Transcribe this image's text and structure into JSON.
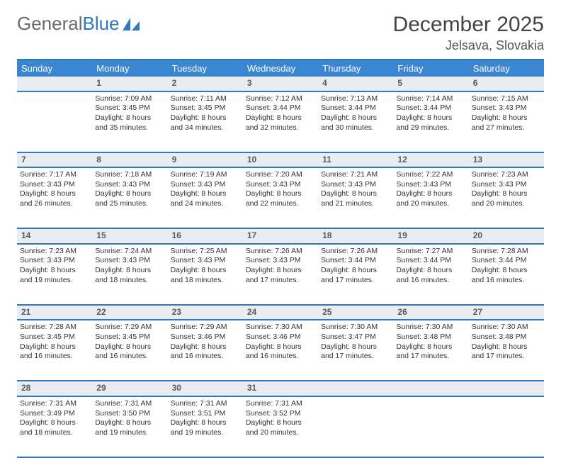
{
  "logo": {
    "text1": "General",
    "text2": "Blue"
  },
  "title": "December 2025",
  "location": "Jelsava, Slovakia",
  "colors": {
    "header_bg": "#3a86d0",
    "border": "#2f78c4",
    "daynum_bg": "#e9edf1",
    "text": "#333333"
  },
  "weekdays": [
    "Sunday",
    "Monday",
    "Tuesday",
    "Wednesday",
    "Thursday",
    "Friday",
    "Saturday"
  ],
  "weeks": [
    {
      "nums": [
        "",
        "1",
        "2",
        "3",
        "4",
        "5",
        "6"
      ],
      "cells": [
        "",
        "Sunrise: 7:09 AM\nSunset: 3:45 PM\nDaylight: 8 hours and 35 minutes.",
        "Sunrise: 7:11 AM\nSunset: 3:45 PM\nDaylight: 8 hours and 34 minutes.",
        "Sunrise: 7:12 AM\nSunset: 3:44 PM\nDaylight: 8 hours and 32 minutes.",
        "Sunrise: 7:13 AM\nSunset: 3:44 PM\nDaylight: 8 hours and 30 minutes.",
        "Sunrise: 7:14 AM\nSunset: 3:44 PM\nDaylight: 8 hours and 29 minutes.",
        "Sunrise: 7:15 AM\nSunset: 3:43 PM\nDaylight: 8 hours and 27 minutes."
      ]
    },
    {
      "nums": [
        "7",
        "8",
        "9",
        "10",
        "11",
        "12",
        "13"
      ],
      "cells": [
        "Sunrise: 7:17 AM\nSunset: 3:43 PM\nDaylight: 8 hours and 26 minutes.",
        "Sunrise: 7:18 AM\nSunset: 3:43 PM\nDaylight: 8 hours and 25 minutes.",
        "Sunrise: 7:19 AM\nSunset: 3:43 PM\nDaylight: 8 hours and 24 minutes.",
        "Sunrise: 7:20 AM\nSunset: 3:43 PM\nDaylight: 8 hours and 22 minutes.",
        "Sunrise: 7:21 AM\nSunset: 3:43 PM\nDaylight: 8 hours and 21 minutes.",
        "Sunrise: 7:22 AM\nSunset: 3:43 PM\nDaylight: 8 hours and 20 minutes.",
        "Sunrise: 7:23 AM\nSunset: 3:43 PM\nDaylight: 8 hours and 20 minutes."
      ]
    },
    {
      "nums": [
        "14",
        "15",
        "16",
        "17",
        "18",
        "19",
        "20"
      ],
      "cells": [
        "Sunrise: 7:23 AM\nSunset: 3:43 PM\nDaylight: 8 hours and 19 minutes.",
        "Sunrise: 7:24 AM\nSunset: 3:43 PM\nDaylight: 8 hours and 18 minutes.",
        "Sunrise: 7:25 AM\nSunset: 3:43 PM\nDaylight: 8 hours and 18 minutes.",
        "Sunrise: 7:26 AM\nSunset: 3:43 PM\nDaylight: 8 hours and 17 minutes.",
        "Sunrise: 7:26 AM\nSunset: 3:44 PM\nDaylight: 8 hours and 17 minutes.",
        "Sunrise: 7:27 AM\nSunset: 3:44 PM\nDaylight: 8 hours and 16 minutes.",
        "Sunrise: 7:28 AM\nSunset: 3:44 PM\nDaylight: 8 hours and 16 minutes."
      ]
    },
    {
      "nums": [
        "21",
        "22",
        "23",
        "24",
        "25",
        "26",
        "27"
      ],
      "cells": [
        "Sunrise: 7:28 AM\nSunset: 3:45 PM\nDaylight: 8 hours and 16 minutes.",
        "Sunrise: 7:29 AM\nSunset: 3:45 PM\nDaylight: 8 hours and 16 minutes.",
        "Sunrise: 7:29 AM\nSunset: 3:46 PM\nDaylight: 8 hours and 16 minutes.",
        "Sunrise: 7:30 AM\nSunset: 3:46 PM\nDaylight: 8 hours and 16 minutes.",
        "Sunrise: 7:30 AM\nSunset: 3:47 PM\nDaylight: 8 hours and 17 minutes.",
        "Sunrise: 7:30 AM\nSunset: 3:48 PM\nDaylight: 8 hours and 17 minutes.",
        "Sunrise: 7:30 AM\nSunset: 3:48 PM\nDaylight: 8 hours and 17 minutes."
      ]
    },
    {
      "nums": [
        "28",
        "29",
        "30",
        "31",
        "",
        "",
        ""
      ],
      "cells": [
        "Sunrise: 7:31 AM\nSunset: 3:49 PM\nDaylight: 8 hours and 18 minutes.",
        "Sunrise: 7:31 AM\nSunset: 3:50 PM\nDaylight: 8 hours and 19 minutes.",
        "Sunrise: 7:31 AM\nSunset: 3:51 PM\nDaylight: 8 hours and 19 minutes.",
        "Sunrise: 7:31 AM\nSunset: 3:52 PM\nDaylight: 8 hours and 20 minutes.",
        "",
        "",
        ""
      ]
    }
  ]
}
